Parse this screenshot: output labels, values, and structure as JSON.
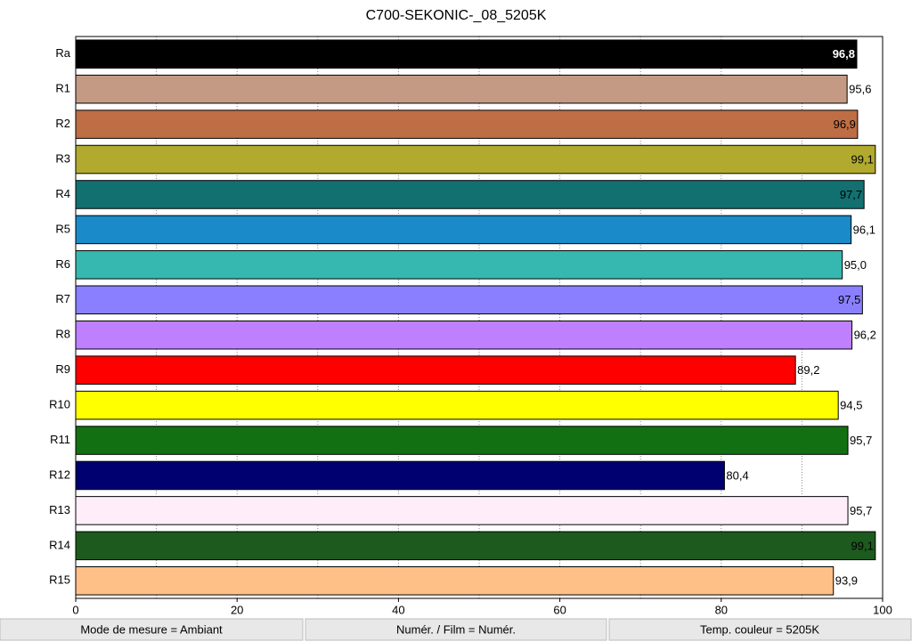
{
  "chart_data": {
    "type": "barh",
    "title": "C700-SEKONIC-_08_5205K",
    "categories": [
      "Ra",
      "R1",
      "R2",
      "R3",
      "R4",
      "R5",
      "R6",
      "R7",
      "R8",
      "R9",
      "R10",
      "R11",
      "R12",
      "R13",
      "R14",
      "R15"
    ],
    "values": [
      96.8,
      95.6,
      96.9,
      99.1,
      97.7,
      96.1,
      95.0,
      97.5,
      96.2,
      89.2,
      94.5,
      95.7,
      80.4,
      95.7,
      99.1,
      93.9
    ],
    "value_labels": [
      "96,8",
      "95,6",
      "96,9",
      "99,1",
      "97,7",
      "96,1",
      "95,0",
      "97,5",
      "96,2",
      "89,2",
      "94,5",
      "95,7",
      "80,4",
      "95,7",
      "99,1",
      "93,9"
    ],
    "colors": [
      "#000000",
      "#c49a85",
      "#be6e44",
      "#b1aa2e",
      "#127070",
      "#1a8ac8",
      "#36b8b0",
      "#8a80ff",
      "#bf80ff",
      "#ff0000",
      "#ffff00",
      "#127012",
      "#000070",
      "#ffeefa",
      "#1d5a1d",
      "#ffc088"
    ],
    "xlim": [
      0,
      100
    ],
    "xticks": [
      0,
      20,
      40,
      60,
      80,
      100
    ],
    "xminor": [
      10,
      30,
      50,
      70,
      90
    ],
    "grid": true
  },
  "footer": [
    "Mode de mesure = Ambiant",
    "Numér. / Film = Numér.",
    "Temp. couleur = 5205K"
  ]
}
